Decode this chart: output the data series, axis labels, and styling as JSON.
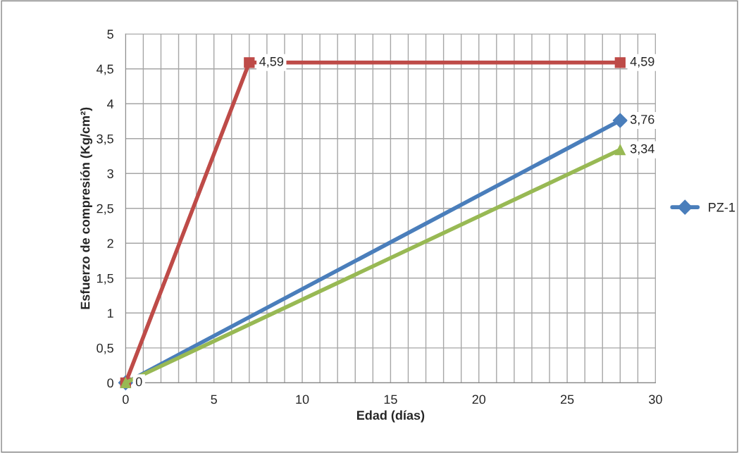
{
  "chart_data": {
    "type": "line",
    "xlabel": "Edad (días)",
    "ylabel": "Esfuerzo de compresión (Kg/cm²)",
    "xlim": [
      0,
      30
    ],
    "ylim": [
      0,
      5
    ],
    "xticks": [
      0,
      {
        "value": 1,
        "label": null
      },
      {
        "value": 2,
        "label": null
      },
      {
        "value": 3,
        "label": null
      },
      {
        "value": 4,
        "label": null
      },
      5,
      {
        "value": 6,
        "label": null
      },
      {
        "value": 7,
        "label": null
      },
      {
        "value": 8,
        "label": null
      },
      {
        "value": 9,
        "label": null
      },
      10,
      {
        "value": 11,
        "label": null
      },
      {
        "value": 12,
        "label": null
      },
      {
        "value": 13,
        "label": null
      },
      {
        "value": 14,
        "label": null
      },
      15,
      {
        "value": 16,
        "label": null
      },
      {
        "value": 17,
        "label": null
      },
      {
        "value": 18,
        "label": null
      },
      {
        "value": 19,
        "label": null
      },
      20,
      {
        "value": 21,
        "label": null
      },
      {
        "value": 22,
        "label": null
      },
      {
        "value": 23,
        "label": null
      },
      {
        "value": 24,
        "label": null
      },
      25,
      {
        "value": 26,
        "label": null
      },
      {
        "value": 27,
        "label": null
      },
      {
        "value": 28,
        "label": null
      },
      {
        "value": 29,
        "label": null
      },
      30
    ],
    "yticks": [
      0,
      {
        "value": 0.5,
        "label": "0,5"
      },
      1,
      {
        "value": 1.5,
        "label": "1,5"
      },
      2,
      {
        "value": 2.5,
        "label": "2,5"
      },
      3,
      {
        "value": 3.5,
        "label": "3,5"
      },
      4,
      {
        "value": 4.5,
        "label": "4,5"
      },
      5
    ],
    "grid": true,
    "legend": "right",
    "line_style": "solid",
    "series": [
      {
        "name": "PZ-1",
        "color": "#4a7ebb",
        "marker": "diamond",
        "x": [
          0,
          28
        ],
        "values": [
          0,
          3.76
        ],
        "value_labels": [
          null,
          "3,76"
        ]
      },
      {
        "color": "#be4b48",
        "marker": "square",
        "x": [
          0,
          7,
          28
        ],
        "values": [
          0,
          4.59,
          4.59
        ],
        "value_labels": [
          null,
          "4,59",
          "4,59"
        ]
      },
      {
        "color": "#98b954",
        "marker": "triangle",
        "x": [
          0,
          28
        ],
        "values": [
          0,
          3.34
        ],
        "value_labels": [
          "0",
          "3,34"
        ]
      }
    ]
  }
}
